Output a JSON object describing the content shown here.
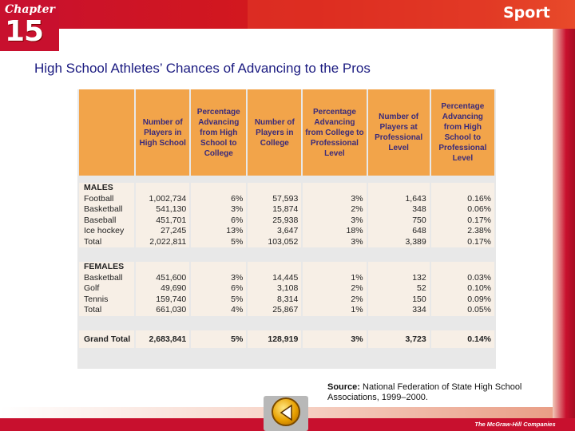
{
  "header": {
    "chapter_label": "Chapter",
    "chapter_number": "15",
    "sport_label": "Sport"
  },
  "title": "High School Athletes’ Chances of Advancing to the Pros",
  "table": {
    "columns": [
      "",
      "Number of Players in High School",
      "Percentage Advancing from High School to College",
      "Number of Players in College",
      "Percentage Advancing from College to Professional Level",
      "Number of Players at Professional Level",
      "Percentage Advancing from High School to Professional Level"
    ],
    "males_label": "MALES",
    "males": [
      [
        "Football",
        "1,002,734",
        "6%",
        "57,593",
        "3%",
        "1,643",
        "0.16%"
      ],
      [
        "Basketball",
        "541,130",
        "3%",
        "15,874",
        "2%",
        "348",
        "0.06%"
      ],
      [
        "Baseball",
        "451,701",
        "6%",
        "25,938",
        "3%",
        "750",
        "0.17%"
      ],
      [
        "Ice hockey",
        "27,245",
        "13%",
        "3,647",
        "18%",
        "648",
        "2.38%"
      ],
      [
        "Total",
        "2,022,811",
        "5%",
        "103,052",
        "3%",
        "3,389",
        "0.17%"
      ]
    ],
    "females_label": "FEMALES",
    "females": [
      [
        "Basketball",
        "451,600",
        "3%",
        "14,445",
        "1%",
        "132",
        "0.03%"
      ],
      [
        "Golf",
        "49,690",
        "6%",
        "3,108",
        "2%",
        "52",
        "0.10%"
      ],
      [
        "Tennis",
        "159,740",
        "5%",
        "8,314",
        "2%",
        "150",
        "0.09%"
      ],
      [
        "Total",
        "661,030",
        "4%",
        "25,867",
        "1%",
        "334",
        "0.05%"
      ]
    ],
    "grand_total": [
      "Grand Total",
      "2,683,841",
      "5%",
      "128,919",
      "3%",
      "3,723",
      "0.14%"
    ]
  },
  "source": {
    "label": "Source:",
    "text": "National Federation of State High School Associations, 1999–2000."
  },
  "footer": {
    "publisher": "The McGraw-Hill Companies"
  },
  "icons": {
    "back": "back-arrow-icon"
  },
  "colors": {
    "brand_red": "#c8102e",
    "header_orange": "#f2a44a",
    "title_blue": "#1a1a80"
  }
}
